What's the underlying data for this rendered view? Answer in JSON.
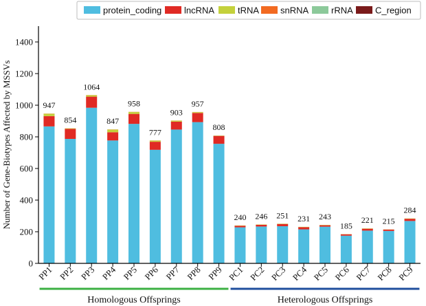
{
  "chart_data": {
    "type": "bar",
    "stacked": true,
    "title": "",
    "xlabel": "",
    "ylabel": "Number of Gene-Biotypes Affected by MSSVs",
    "ylim": [
      0,
      1500
    ],
    "yticks": [
      0,
      200,
      400,
      600,
      800,
      1000,
      1200,
      1400
    ],
    "categories": [
      "PP1",
      "PP2",
      "PP3",
      "PP4",
      "PP5",
      "PP6",
      "PP7",
      "PP8",
      "PP9",
      "PC1",
      "PC2",
      "PC3",
      "PC4",
      "PC5",
      "PC6",
      "PC7",
      "PC8",
      "PC9"
    ],
    "totals": [
      947,
      854,
      1064,
      847,
      958,
      777,
      903,
      957,
      808,
      240,
      246,
      251,
      231,
      243,
      185,
      221,
      215,
      284
    ],
    "series": [
      {
        "name": "protein_coding",
        "color": "#4fbde0",
        "values": [
          866,
          787,
          984,
          777,
          882,
          718,
          846,
          893,
          756,
          228,
          233,
          235,
          215,
          232,
          175,
          207,
          205,
          268
        ]
      },
      {
        "name": "lncRNA",
        "color": "#e02a24",
        "values": [
          65,
          63,
          70,
          52,
          63,
          51,
          50,
          58,
          50,
          10,
          11,
          14,
          14,
          9,
          9,
          12,
          9,
          14
        ]
      },
      {
        "name": "tRNA",
        "color": "#c4d13c",
        "values": [
          15,
          3,
          9,
          17,
          12,
          7,
          6,
          5,
          2,
          2,
          2,
          2,
          2,
          2,
          1,
          2,
          1,
          2
        ]
      },
      {
        "name": "snRNA",
        "color": "#f26a21",
        "values": [
          1,
          1,
          1,
          1,
          1,
          1,
          1,
          1,
          0,
          0,
          0,
          0,
          0,
          0,
          0,
          0,
          0,
          0
        ]
      },
      {
        "name": "rRNA",
        "color": "#8cc99a",
        "values": [
          0,
          0,
          0,
          0,
          0,
          0,
          0,
          0,
          0,
          0,
          0,
          0,
          0,
          0,
          0,
          0,
          0,
          0
        ]
      },
      {
        "name": "C_region",
        "color": "#7a1a1a",
        "values": [
          0,
          0,
          0,
          0,
          0,
          0,
          0,
          0,
          0,
          0,
          0,
          0,
          0,
          0,
          0,
          0,
          0,
          0
        ]
      }
    ],
    "groups": [
      {
        "label": "Homologous Offsprings",
        "color": "#3cb043",
        "from": 0,
        "to": 8
      },
      {
        "label": "Heterologous Offsprings",
        "color": "#1f4e9c",
        "from": 9,
        "to": 17
      }
    ],
    "legend_position": "top-right",
    "grid": false
  }
}
